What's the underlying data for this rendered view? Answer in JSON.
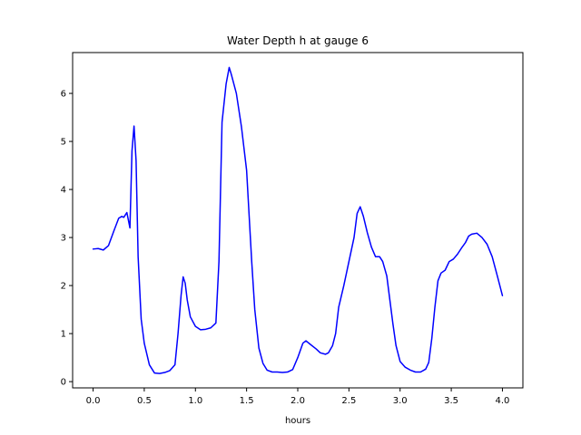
{
  "chart_data": {
    "type": "line",
    "title": "Water Depth h at gauge 6",
    "xlabel": "hours",
    "ylabel": "",
    "xlim": [
      -0.2,
      4.2
    ],
    "ylim": [
      -0.13,
      6.85
    ],
    "xticks": [
      "0.0",
      "0.5",
      "1.0",
      "1.5",
      "2.0",
      "2.5",
      "3.0",
      "3.5",
      "4.0"
    ],
    "yticks": [
      "0",
      "1",
      "2",
      "3",
      "4",
      "5",
      "6"
    ],
    "grid": false,
    "legend": "none",
    "series": [
      {
        "color": "#0000ff",
        "points": [
          [
            0.0,
            2.76
          ],
          [
            0.05,
            2.77
          ],
          [
            0.1,
            2.74
          ],
          [
            0.15,
            2.83
          ],
          [
            0.2,
            3.12
          ],
          [
            0.25,
            3.4
          ],
          [
            0.28,
            3.44
          ],
          [
            0.3,
            3.42
          ],
          [
            0.33,
            3.52
          ],
          [
            0.36,
            3.2
          ],
          [
            0.38,
            4.8
          ],
          [
            0.4,
            5.32
          ],
          [
            0.42,
            4.6
          ],
          [
            0.44,
            2.6
          ],
          [
            0.47,
            1.3
          ],
          [
            0.5,
            0.8
          ],
          [
            0.55,
            0.35
          ],
          [
            0.6,
            0.18
          ],
          [
            0.65,
            0.17
          ],
          [
            0.7,
            0.19
          ],
          [
            0.75,
            0.23
          ],
          [
            0.8,
            0.35
          ],
          [
            0.83,
            1.0
          ],
          [
            0.86,
            1.8
          ],
          [
            0.88,
            2.18
          ],
          [
            0.9,
            2.05
          ],
          [
            0.92,
            1.7
          ],
          [
            0.95,
            1.35
          ],
          [
            1.0,
            1.15
          ],
          [
            1.05,
            1.08
          ],
          [
            1.1,
            1.09
          ],
          [
            1.15,
            1.12
          ],
          [
            1.2,
            1.22
          ],
          [
            1.23,
            2.5
          ],
          [
            1.26,
            5.4
          ],
          [
            1.3,
            6.2
          ],
          [
            1.33,
            6.54
          ],
          [
            1.35,
            6.4
          ],
          [
            1.4,
            6.0
          ],
          [
            1.45,
            5.3
          ],
          [
            1.5,
            4.4
          ],
          [
            1.55,
            2.5
          ],
          [
            1.58,
            1.5
          ],
          [
            1.62,
            0.7
          ],
          [
            1.66,
            0.38
          ],
          [
            1.7,
            0.24
          ],
          [
            1.75,
            0.2
          ],
          [
            1.8,
            0.2
          ],
          [
            1.85,
            0.19
          ],
          [
            1.9,
            0.2
          ],
          [
            1.95,
            0.25
          ],
          [
            2.0,
            0.5
          ],
          [
            2.05,
            0.8
          ],
          [
            2.08,
            0.85
          ],
          [
            2.12,
            0.78
          ],
          [
            2.18,
            0.68
          ],
          [
            2.22,
            0.6
          ],
          [
            2.27,
            0.57
          ],
          [
            2.3,
            0.6
          ],
          [
            2.34,
            0.75
          ],
          [
            2.37,
            1.0
          ],
          [
            2.4,
            1.55
          ],
          [
            2.45,
            2.0
          ],
          [
            2.5,
            2.5
          ],
          [
            2.55,
            3.0
          ],
          [
            2.58,
            3.5
          ],
          [
            2.61,
            3.64
          ],
          [
            2.64,
            3.45
          ],
          [
            2.68,
            3.1
          ],
          [
            2.72,
            2.8
          ],
          [
            2.76,
            2.6
          ],
          [
            2.8,
            2.6
          ],
          [
            2.83,
            2.5
          ],
          [
            2.87,
            2.2
          ],
          [
            2.9,
            1.7
          ],
          [
            2.93,
            1.2
          ],
          [
            2.96,
            0.75
          ],
          [
            3.0,
            0.42
          ],
          [
            3.05,
            0.3
          ],
          [
            3.1,
            0.24
          ],
          [
            3.15,
            0.2
          ],
          [
            3.2,
            0.2
          ],
          [
            3.25,
            0.26
          ],
          [
            3.28,
            0.4
          ],
          [
            3.31,
            0.9
          ],
          [
            3.34,
            1.55
          ],
          [
            3.37,
            2.1
          ],
          [
            3.4,
            2.26
          ],
          [
            3.44,
            2.32
          ],
          [
            3.48,
            2.5
          ],
          [
            3.52,
            2.55
          ],
          [
            3.56,
            2.65
          ],
          [
            3.6,
            2.78
          ],
          [
            3.64,
            2.9
          ],
          [
            3.67,
            3.03
          ],
          [
            3.7,
            3.07
          ],
          [
            3.75,
            3.09
          ],
          [
            3.8,
            3.0
          ],
          [
            3.85,
            2.86
          ],
          [
            3.9,
            2.6
          ],
          [
            3.95,
            2.2
          ],
          [
            4.0,
            1.79
          ]
        ]
      }
    ]
  }
}
